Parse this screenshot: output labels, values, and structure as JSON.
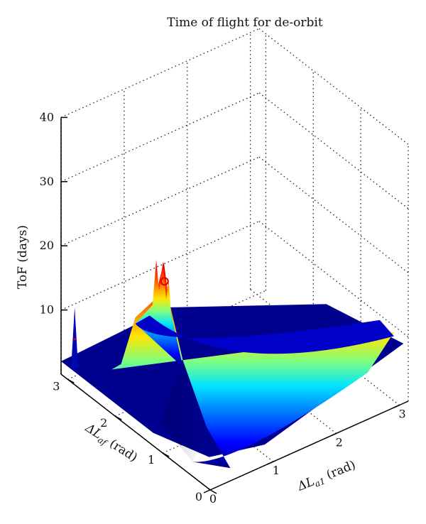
{
  "chart_data": {
    "type": "surface",
    "title": "Time of flight for de-orbit",
    "xlabel": "ΔL_a1 (rad)",
    "ylabel": "ΔL_af (rad)",
    "zlabel": "ToF (days)",
    "xlabel_main": "ΔL",
    "xlabel_sub": "a1",
    "xlabel_unit": " (rad)",
    "ylabel_main": "ΔL",
    "ylabel_sub": "af",
    "ylabel_unit": " (rad)",
    "xlim": [
      0,
      3.14
    ],
    "ylim": [
      0,
      3.14
    ],
    "zlim": [
      0,
      40
    ],
    "x_ticks": [
      0,
      1,
      2,
      3
    ],
    "y_ticks": [
      0,
      1,
      2,
      3
    ],
    "z_ticks": [
      10,
      20,
      30,
      40
    ],
    "grid": true,
    "colormap": "jet",
    "marker": {
      "x": 0.33,
      "y": 1.4,
      "z": 23,
      "shape": "circle",
      "color": "#e00000"
    },
    "peak_profile": [
      {
        "y": 0.0,
        "z": 2.0
      },
      {
        "y": 0.5,
        "z": 5.5
      },
      {
        "y": 1.0,
        "z": 13.0
      },
      {
        "y": 1.3,
        "z": 21.0
      },
      {
        "y": 1.4,
        "z": 26.0
      },
      {
        "y": 1.6,
        "z": 19.0
      },
      {
        "y": 2.0,
        "z": 14.0
      },
      {
        "y": 2.3,
        "z": 5.0
      },
      {
        "y": 2.5,
        "z": 3.0
      }
    ],
    "base_level": 2
  }
}
